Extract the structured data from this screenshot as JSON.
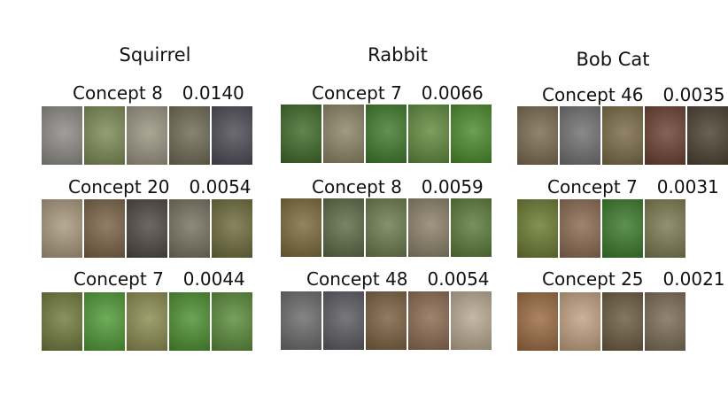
{
  "columns": [
    {
      "title": "Squirrel",
      "concepts": [
        {
          "label": "Concept 8",
          "score": "0.0140",
          "colors": [
            "#8d8a85",
            "#7d8a55",
            "#9a9380",
            "#6e6a55",
            "#4c4a55"
          ]
        },
        {
          "label": "Concept 20",
          "score": "0.0054",
          "colors": [
            "#a8977c",
            "#7a6246",
            "#4e463f",
            "#77705e",
            "#6e6a3c"
          ]
        },
        {
          "label": "Concept 7",
          "score": "0.0044",
          "colors": [
            "#6f7a3c",
            "#4f9a35",
            "#8a8a50",
            "#4b8f2f",
            "#5a8a3a"
          ]
        }
      ]
    },
    {
      "title": "Rabbit",
      "concepts": [
        {
          "label": "Concept 7",
          "score": "0.0066",
          "colors": [
            "#3f6a28",
            "#8d8466",
            "#3f7a2c",
            "#5f8a3c",
            "#4a8a2a"
          ]
        },
        {
          "label": "Concept 8",
          "score": "0.0059",
          "colors": [
            "#7a6a3a",
            "#5a6a44",
            "#6a7a4a",
            "#8a8068",
            "#5a7a3a"
          ]
        },
        {
          "label": "Concept 48",
          "score": "0.0054",
          "colors": [
            "#6a6a6a",
            "#5a5a60",
            "#7a6040",
            "#8a6a50",
            "#b8a890"
          ]
        }
      ]
    },
    {
      "title": "Bob Cat",
      "concepts": [
        {
          "label": "Concept 46",
          "score": "0.0035",
          "colors": [
            "#7a6a50",
            "#707070",
            "#7a6a45",
            "#6a4030",
            "#4a4030"
          ]
        },
        {
          "label": "Concept 7",
          "score": "0.0031",
          "colors": [
            "#6a7a30",
            "#8a6a50",
            "#3a7a2a",
            "#7a7a50"
          ]
        },
        {
          "label": "Concept 25",
          "score": "0.0021",
          "colors": [
            "#9a6a40",
            "#c0a080",
            "#6a5a40",
            "#7a6a55"
          ]
        }
      ]
    }
  ]
}
